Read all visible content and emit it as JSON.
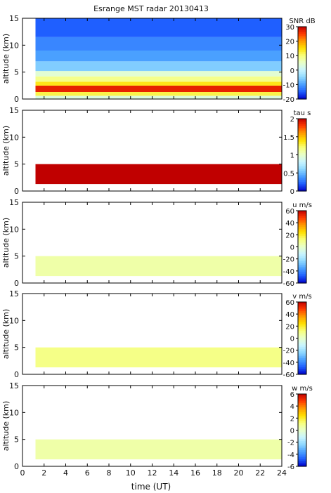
{
  "title": "Esrange MST radar 20130413",
  "xlabel": "time (UT)",
  "chart_data": [
    {
      "type": "heatmap",
      "ylabel": "altitude (km)",
      "colorbar_label": "SNR dB",
      "colorbar_ticks": [
        "30",
        "20",
        "10",
        "0",
        "-10",
        "-20"
      ],
      "colorbar_range": [
        -20,
        30
      ],
      "x_range": [
        0,
        24
      ],
      "y_range": [
        0,
        15
      ],
      "y_ticks": [
        "0",
        "5",
        "10",
        "15"
      ],
      "data_time_range": [
        1.2,
        24
      ],
      "layers": [
        {
          "alt_from": 0.0,
          "alt_to": 0.6,
          "value": 3
        },
        {
          "alt_from": 0.6,
          "alt_to": 1.3,
          "value": 12
        },
        {
          "alt_from": 1.3,
          "alt_to": 2.5,
          "value": 27
        },
        {
          "alt_from": 2.5,
          "alt_to": 3.2,
          "value": 14
        },
        {
          "alt_from": 3.2,
          "alt_to": 4.2,
          "value": 9
        },
        {
          "alt_from": 4.2,
          "alt_to": 5.2,
          "value": 4
        },
        {
          "alt_from": 5.2,
          "alt_to": 7.0,
          "value": -6
        },
        {
          "alt_from": 7.0,
          "alt_to": 9.0,
          "value": -10
        },
        {
          "alt_from": 9.0,
          "alt_to": 11.5,
          "value": -12
        },
        {
          "alt_from": 11.5,
          "alt_to": 15.0,
          "value": -15
        }
      ]
    },
    {
      "type": "heatmap",
      "ylabel": "altitude (km)",
      "colorbar_label": "tau s",
      "colorbar_ticks": [
        "2",
        "1.5",
        "1",
        "0.5",
        "0"
      ],
      "colorbar_range": [
        0,
        2
      ],
      "x_range": [
        0,
        24
      ],
      "y_range": [
        0,
        15
      ],
      "y_ticks": [
        "0",
        "5",
        "10",
        "15"
      ],
      "data_time_range": [
        1.2,
        24
      ],
      "layers": [
        {
          "alt_from": 1.3,
          "alt_to": 5.0,
          "value": 2
        }
      ]
    },
    {
      "type": "heatmap",
      "ylabel": "altitude (km)",
      "colorbar_label": "u m/s",
      "colorbar_ticks": [
        "60",
        "40",
        "20",
        "0",
        "-20",
        "-40",
        "-60"
      ],
      "colorbar_range": [
        -60,
        60
      ],
      "x_range": [
        0,
        24
      ],
      "y_range": [
        0,
        15
      ],
      "y_ticks": [
        "0",
        "5",
        "10",
        "15"
      ],
      "data_time_range": [
        1.2,
        24
      ],
      "layers": [
        {
          "alt_from": 1.3,
          "alt_to": 5.0,
          "value": 5
        }
      ]
    },
    {
      "type": "heatmap",
      "ylabel": "altitude (km)",
      "colorbar_label": "v m/s",
      "colorbar_ticks": [
        "60",
        "40",
        "20",
        "0",
        "-20",
        "-40",
        "-60"
      ],
      "colorbar_range": [
        -60,
        60
      ],
      "x_range": [
        0,
        24
      ],
      "y_range": [
        0,
        15
      ],
      "y_ticks": [
        "0",
        "5",
        "10",
        "15"
      ],
      "data_time_range": [
        1.2,
        24
      ],
      "layers": [
        {
          "alt_from": 1.3,
          "alt_to": 5.0,
          "value": 10
        }
      ]
    },
    {
      "type": "heatmap",
      "ylabel": "altitude (km)",
      "colorbar_label": "w m/s",
      "colorbar_ticks": [
        "6",
        "4",
        "2",
        "0",
        "-2",
        "-4",
        "-6"
      ],
      "colorbar_range": [
        -6,
        6
      ],
      "x_range": [
        0,
        24
      ],
      "y_range": [
        0,
        15
      ],
      "y_ticks": [
        "0",
        "5",
        "10",
        "15"
      ],
      "data_time_range": [
        1.2,
        24
      ],
      "layers": [
        {
          "alt_from": 1.3,
          "alt_to": 5.0,
          "value": 0.5
        }
      ]
    }
  ],
  "x_ticks": [
    "0",
    "2",
    "4",
    "6",
    "8",
    "10",
    "12",
    "14",
    "16",
    "18",
    "20",
    "22",
    "24"
  ],
  "colormap": [
    "#0000c8",
    "#1f5fff",
    "#4aa0ff",
    "#8fd8ff",
    "#c8f5ff",
    "#e8ffc8",
    "#f8ff7a",
    "#ffe000",
    "#ff9a00",
    "#ff3a00",
    "#c00000"
  ]
}
